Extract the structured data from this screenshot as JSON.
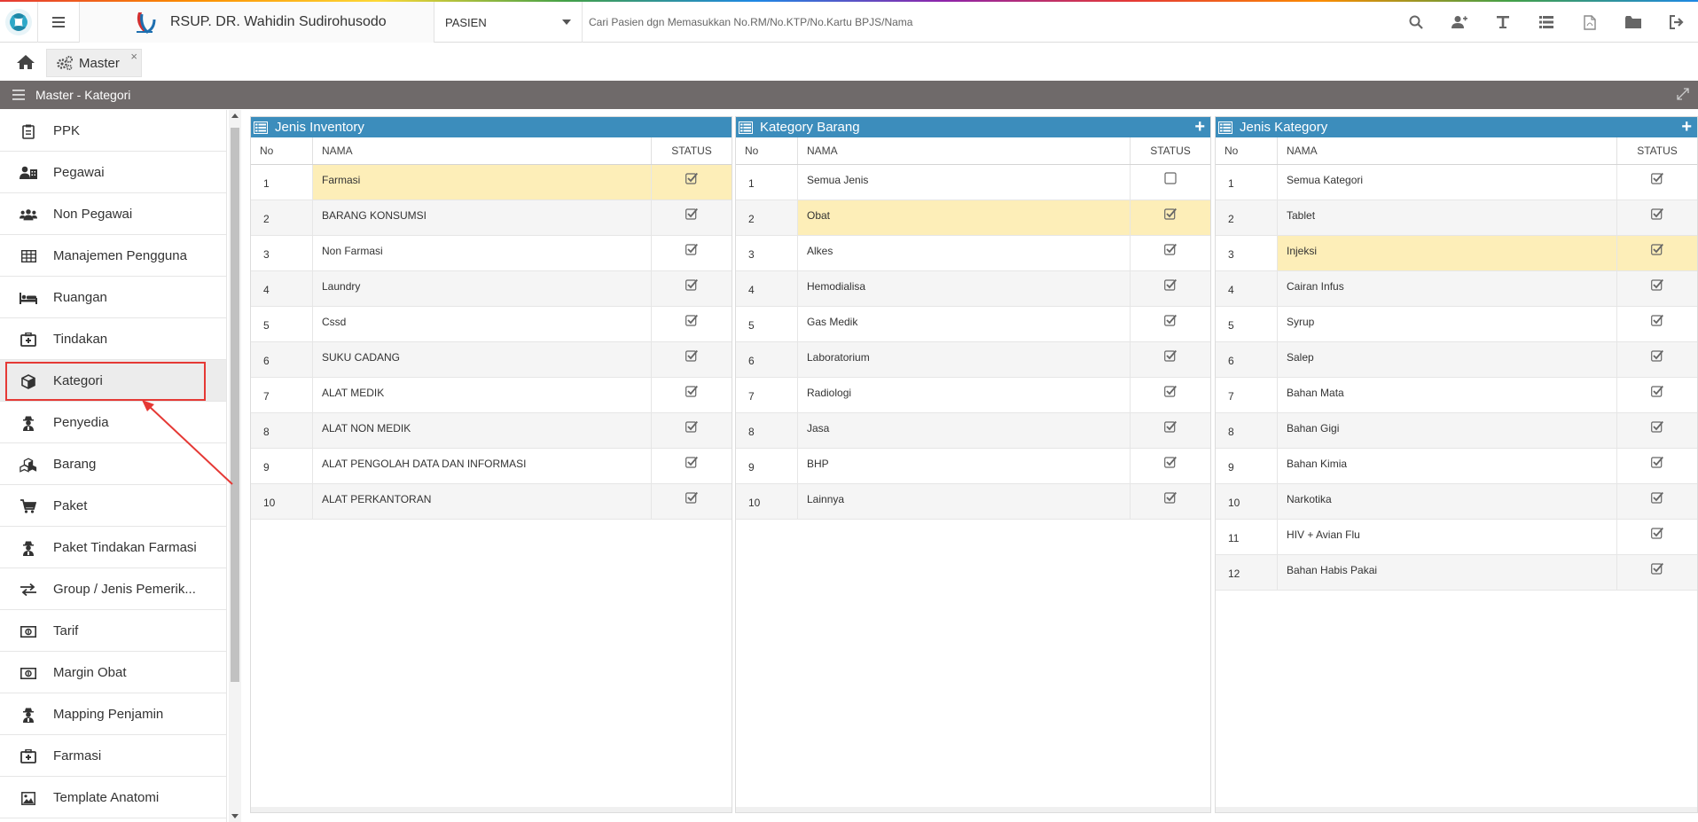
{
  "app": {
    "hospital_name": "RSUP. DR. Wahidin Sudirohusodo",
    "patient_select": "PASIEN",
    "search_placeholder": "Cari Pasien dgn Memasukkan No.RM/No.KTP/No.Kartu BPJS/Nama",
    "toolbar_icons": [
      "search-icon",
      "add-user-icon",
      "text-icon",
      "list-icon",
      "pdf-icon",
      "folder-icon",
      "logout-icon"
    ]
  },
  "tabs": [
    {
      "label": "Master",
      "icon": "gears-icon",
      "close": "×"
    }
  ],
  "panel": {
    "title": "Master - Kategori"
  },
  "sidebar": {
    "items": [
      {
        "label": "PPK",
        "icon": "clipboard-icon"
      },
      {
        "label": "Pegawai",
        "icon": "user-building-icon"
      },
      {
        "label": "Non Pegawai",
        "icon": "users-icon"
      },
      {
        "label": "Manajemen Pengguna",
        "icon": "table-icon"
      },
      {
        "label": "Ruangan",
        "icon": "bed-icon"
      },
      {
        "label": "Tindakan",
        "icon": "medkit-icon"
      },
      {
        "label": "Kategori",
        "icon": "cube-icon",
        "active": true
      },
      {
        "label": "Penyedia",
        "icon": "user-secret-icon"
      },
      {
        "label": "Barang",
        "icon": "cubes-icon"
      },
      {
        "label": "Paket",
        "icon": "cart-icon"
      },
      {
        "label": "Paket Tindakan Farmasi",
        "icon": "user-secret-icon"
      },
      {
        "label": "Group / Jenis Pemerik...",
        "icon": "exchange-icon"
      },
      {
        "label": "Tarif",
        "icon": "money-icon"
      },
      {
        "label": "Margin Obat",
        "icon": "money-icon"
      },
      {
        "label": "Mapping Penjamin",
        "icon": "user-secret-icon"
      },
      {
        "label": "Farmasi",
        "icon": "medkit-icon"
      },
      {
        "label": "Template Anatomi",
        "icon": "image-icon"
      }
    ]
  },
  "grids": [
    {
      "title": "Jenis Inventory",
      "has_add": false,
      "columns": {
        "no": "No",
        "nama": "NAMA",
        "status": "STATUS"
      },
      "rows": [
        {
          "no": "1",
          "nama": "Farmasi",
          "checked": true,
          "selected": true
        },
        {
          "no": "2",
          "nama": "BARANG KONSUMSI",
          "checked": true
        },
        {
          "no": "3",
          "nama": "Non Farmasi",
          "checked": true
        },
        {
          "no": "4",
          "nama": "Laundry",
          "checked": true
        },
        {
          "no": "5",
          "nama": "Cssd",
          "checked": true
        },
        {
          "no": "6",
          "nama": "SUKU CADANG",
          "checked": true
        },
        {
          "no": "7",
          "nama": "ALAT MEDIK",
          "checked": true
        },
        {
          "no": "8",
          "nama": "ALAT NON MEDIK",
          "checked": true
        },
        {
          "no": "9",
          "nama": "ALAT PENGOLAH DATA DAN INFORMASI",
          "checked": true
        },
        {
          "no": "10",
          "nama": "ALAT PERKANTORAN",
          "checked": true
        }
      ]
    },
    {
      "title": "Kategory Barang",
      "has_add": true,
      "columns": {
        "no": "No",
        "nama": "NAMA",
        "status": "STATUS"
      },
      "rows": [
        {
          "no": "1",
          "nama": "Semua Jenis",
          "checked": false
        },
        {
          "no": "2",
          "nama": "Obat",
          "checked": true,
          "selected": true
        },
        {
          "no": "3",
          "nama": "Alkes",
          "checked": true
        },
        {
          "no": "4",
          "nama": "Hemodialisa",
          "checked": true
        },
        {
          "no": "5",
          "nama": "Gas Medik",
          "checked": true
        },
        {
          "no": "6",
          "nama": "Laboratorium",
          "checked": true
        },
        {
          "no": "7",
          "nama": "Radiologi",
          "checked": true
        },
        {
          "no": "8",
          "nama": "Jasa",
          "checked": true
        },
        {
          "no": "9",
          "nama": "BHP",
          "checked": true
        },
        {
          "no": "10",
          "nama": "Lainnya",
          "checked": true
        }
      ]
    },
    {
      "title": "Jenis Kategory",
      "has_add": true,
      "columns": {
        "no": "No",
        "nama": "NAMA",
        "status": "STATUS"
      },
      "rows": [
        {
          "no": "1",
          "nama": "Semua Kategori",
          "checked": true
        },
        {
          "no": "2",
          "nama": "Tablet",
          "checked": true
        },
        {
          "no": "3",
          "nama": "Injeksi",
          "checked": true,
          "selected": true
        },
        {
          "no": "4",
          "nama": "Cairan Infus",
          "checked": true
        },
        {
          "no": "5",
          "nama": "Syrup",
          "checked": true
        },
        {
          "no": "6",
          "nama": "Salep",
          "checked": true
        },
        {
          "no": "7",
          "nama": "Bahan Mata",
          "checked": true
        },
        {
          "no": "8",
          "nama": "Bahan Gigi",
          "checked": true
        },
        {
          "no": "9",
          "nama": "Bahan Kimia",
          "checked": true
        },
        {
          "no": "10",
          "nama": "Narkotika",
          "checked": true
        },
        {
          "no": "11",
          "nama": "HIV + Avian Flu",
          "checked": true
        },
        {
          "no": "12",
          "nama": "Bahan Habis Pakai",
          "checked": true
        }
      ]
    }
  ],
  "colors": {
    "grid_header": "#3c8dbc",
    "panel_header": "#6f6a6a",
    "selected_row": "#fdeeb8",
    "annotation": "#e53935"
  }
}
